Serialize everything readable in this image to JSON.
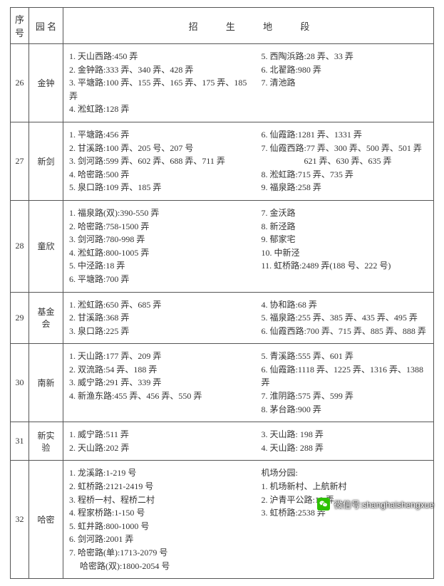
{
  "headers": {
    "seq": "序号",
    "name": "园 名",
    "area": "招 生 地 段"
  },
  "rows": [
    {
      "seq": "26",
      "name": "金钟",
      "left": [
        "1. 天山西路:450 弄",
        "2. 金钟路:333 弄、340 弄、428 弄",
        "3. 平塘路:100 弄、155 弄、165 弄、175 弄、185 弄",
        "4. 淞虹路:128 弄"
      ],
      "right": [
        "5. 西陶浜路:28 弄、33 弄",
        "6. 北翟路:980 弄",
        "7. 清池路"
      ]
    },
    {
      "seq": "27",
      "name": "新剑",
      "left": [
        "1. 平塘路:456 弄",
        "2. 甘溪路:100 弄、205 号、207 号",
        "3. 剑河路:599 弄、602 弄、688 弄、711 弄",
        "4. 哈密路:500 弄",
        "5. 泉口路:109 弄、185 弄"
      ],
      "right": [
        "6. 仙霞路:1281 弄、1331 弄",
        "7. 仙霞西路:77 弄、300 弄、500 弄、501 弄",
        "　　　　　621 弄、630 弄、635 弄",
        "8. 淞虹路:715 弄、735 弄",
        "9. 福泉路:258 弄"
      ]
    },
    {
      "seq": "28",
      "name": "童欣",
      "left": [
        "1. 福泉路(双):390-550 弄",
        "2. 哈密路:758-1500 弄",
        "3. 剑河路:780-998 弄",
        "4. 淞虹路:800-1005 弄",
        "5. 中泾路:18 弄",
        "6. 平塘路:700 弄"
      ],
      "right": [
        "7. 金沃路",
        "8. 新泾路",
        "9. 郁家宅",
        "10. 中新泾",
        "11. 虹桥路:2489 弄(188 号、222 号)"
      ]
    },
    {
      "seq": "29",
      "name": "基金会",
      "left": [
        "1. 淞虹路:650 弄、685 弄",
        "2. 甘溪路:368 弄",
        "3. 泉口路:225 弄"
      ],
      "right": [
        "4. 协和路:68 弄",
        "5. 福泉路:255 弄、385 弄、435 弄、495 弄",
        "6. 仙霞西路:700 弄、715 弄、885 弄、888 弄"
      ]
    },
    {
      "seq": "30",
      "name": "南新",
      "left": [
        "1. 天山路:177 弄、209 弄",
        "2. 双流路:54 弄、188 弄",
        "3. 威宁路:291 弄、339 弄",
        "4. 新渔东路:455 弄、456 弄、550 弄"
      ],
      "right": [
        "5. 青溪路:555 弄、601 弄",
        "6. 仙霞路:1118 弄、1225 弄、1316 弄、1388 弄",
        "7. 淮阴路:575 弄、599 弄",
        "8. 茅台路:900 弄"
      ]
    },
    {
      "seq": "31",
      "name": "新实验",
      "left": [
        "1. 威宁路:511 弄",
        "2. 天山路:202 弄"
      ],
      "right": [
        "3. 天山路: 198 弄",
        "4. 天山路: 288 弄"
      ]
    },
    {
      "seq": "32",
      "name": "哈密",
      "left": [
        "1. 龙溪路:1-219 号",
        "2. 虹桥路:2121-2419 号",
        "3. 程桥一村、程桥二村",
        "4. 程家桥路:1-150 号",
        "5. 虹井路:800-1000 号",
        "6. 剑河路:2001 弄",
        "7. 哈密路(单):1713-2079 号",
        "　 哈密路(双):1800-2054 号"
      ],
      "right": [
        "机场分园:",
        "1. 机场新村、上航新村",
        "2. 沪青平公路:18 弄",
        "3. 虹桥路:2538 弄"
      ]
    }
  ],
  "watermark": {
    "label": "微信号:",
    "id": "shanghaishengxue"
  }
}
